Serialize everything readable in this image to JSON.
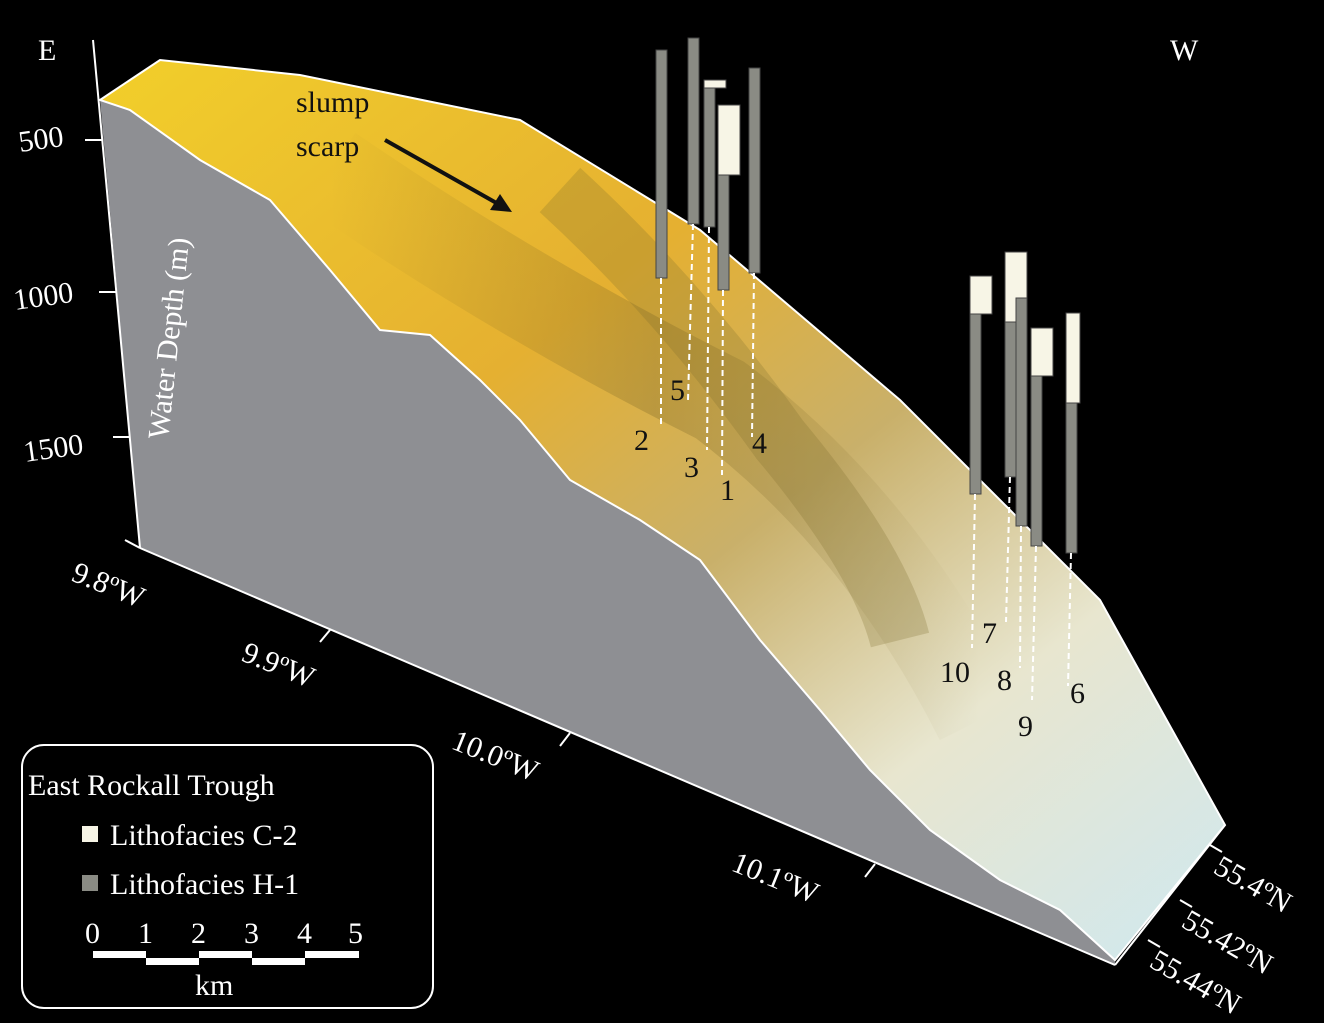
{
  "orientation": {
    "east": "E",
    "west": "W"
  },
  "depth_axis": {
    "label": "Water Depth (m)",
    "ticks": [
      "500",
      "1000",
      "1500"
    ]
  },
  "longitude_ticks": [
    "9.8ºW",
    "9.9ºW",
    "10.0ºW",
    "10.1ºW"
  ],
  "latitude_ticks": [
    "55.4ºN",
    "55.42ºN",
    "55.44ºN"
  ],
  "annotation": {
    "line1": "slump",
    "line2": "scarp"
  },
  "cores": [
    "1",
    "2",
    "3",
    "4",
    "5",
    "6",
    "7",
    "8",
    "9",
    "10"
  ],
  "legend": {
    "title": "East Rockall Trough",
    "items": [
      "Lithofacies C-2",
      "Lithofacies H-1"
    ],
    "scale": {
      "ticks": [
        "0",
        "1",
        "2",
        "3",
        "4",
        "5"
      ],
      "unit": "km"
    }
  }
}
